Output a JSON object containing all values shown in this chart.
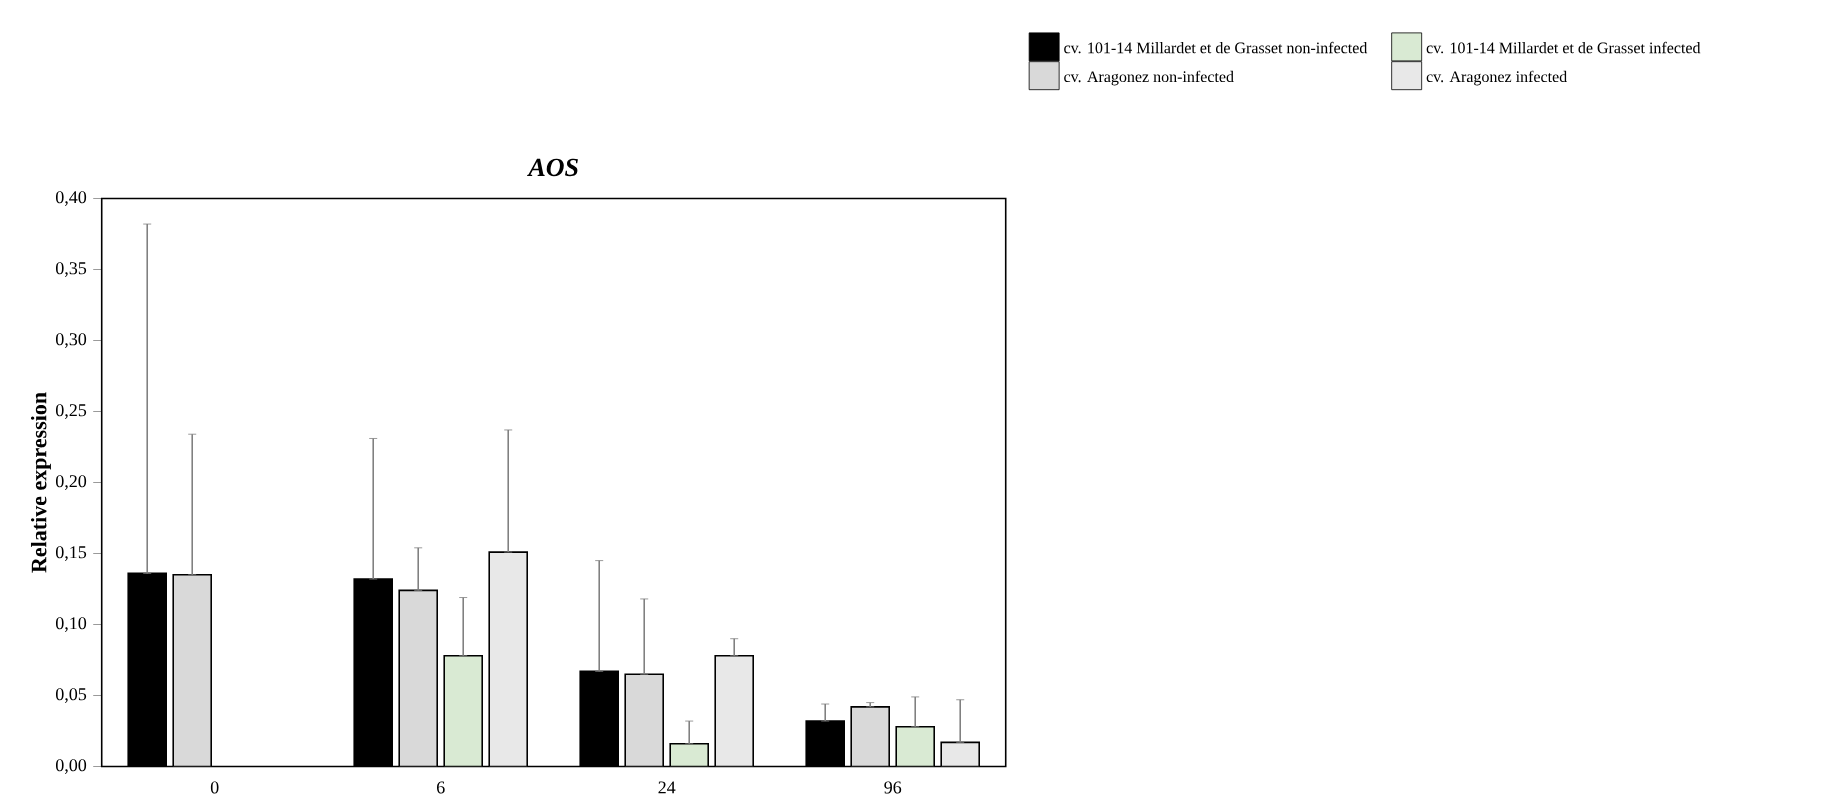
{
  "chart_data": {
    "type": "bar",
    "title": "AOS",
    "ylabel": "Relative expression",
    "categories": [
      "0",
      "6",
      "24",
      "96"
    ],
    "series": [
      {
        "name": "cv. 101-14 Millardet et de Grasset non-infected",
        "color": "#000000",
        "values": [
          0.136,
          0.132,
          0.067,
          0.032
        ],
        "errors": [
          [
            0.136,
            0.382
          ],
          [
            0.132,
            0.231
          ],
          [
            0.067,
            0.145
          ],
          [
            0.032,
            0.044
          ]
        ]
      },
      {
        "name": "cv. Aragonez non-infected",
        "color": "#d9d9d9",
        "values": [
          0.135,
          0.124,
          0.065,
          0.042
        ],
        "errors": [
          [
            0.135,
            0.234
          ],
          [
            0.124,
            0.154
          ],
          [
            0.065,
            0.118
          ],
          [
            0.042,
            0.045
          ]
        ]
      },
      {
        "name": "cv. 101-14 Millardet et de Grasset infected",
        "color": "#d9ead3",
        "values": [
          null,
          0.078,
          0.016,
          0.028
        ],
        "errors": [
          null,
          [
            0.078,
            0.119
          ],
          [
            0.016,
            0.032
          ],
          [
            0.028,
            0.049
          ]
        ]
      },
      {
        "name": "cv. Aragonez infected",
        "color": "#e8e8e8",
        "values": [
          null,
          0.151,
          0.078,
          0.017
        ],
        "errors": [
          null,
          [
            0.151,
            0.237
          ],
          [
            0.078,
            0.09
          ],
          [
            0.017,
            0.047
          ]
        ]
      }
    ],
    "ylim": [
      0,
      0.4
    ],
    "yticks": [
      {
        "value": 0,
        "label": "0,00"
      },
      {
        "value": 0.05,
        "label": "0,05"
      },
      {
        "value": 0.1,
        "label": "0,10"
      },
      {
        "value": 0.15,
        "label": "0,15"
      },
      {
        "value": 0.2,
        "label": "0,20"
      },
      {
        "value": 0.25,
        "label": "0,25"
      },
      {
        "value": 0.3,
        "label": "0,30"
      },
      {
        "value": 0.35,
        "label": "0,35"
      },
      {
        "value": 0.4,
        "label": "0,40"
      }
    ],
    "grid": false,
    "legend": "top right"
  }
}
